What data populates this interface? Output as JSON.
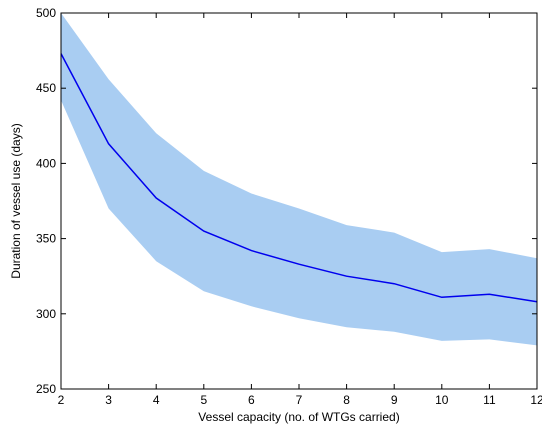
{
  "chart_data": {
    "type": "line",
    "title": "",
    "xlabel": "Vessel capacity (no. of WTGs carried)",
    "ylabel": "Duration of vessel use (days)",
    "xlim": [
      2,
      12
    ],
    "ylim": [
      250,
      500
    ],
    "xticks": [
      2,
      3,
      4,
      5,
      6,
      7,
      8,
      9,
      10,
      11,
      12
    ],
    "yticks": [
      250,
      300,
      350,
      400,
      450,
      500
    ],
    "grid": false,
    "legend": "none",
    "x": [
      2,
      3,
      4,
      5,
      6,
      7,
      8,
      9,
      10,
      11,
      12
    ],
    "series": [
      {
        "type": "line",
        "values": [
          473,
          413,
          377,
          355,
          342,
          333,
          325,
          320,
          311,
          313,
          308
        ],
        "color": "#0000ee"
      }
    ],
    "band": {
      "upper": [
        500,
        456,
        420,
        395,
        380,
        370,
        359,
        354,
        341,
        343,
        337
      ],
      "lower": [
        442,
        370,
        335,
        315,
        305,
        297,
        291,
        288,
        282,
        283,
        279
      ],
      "color": "#a9cdf2"
    },
    "axis_color": "#000000"
  }
}
